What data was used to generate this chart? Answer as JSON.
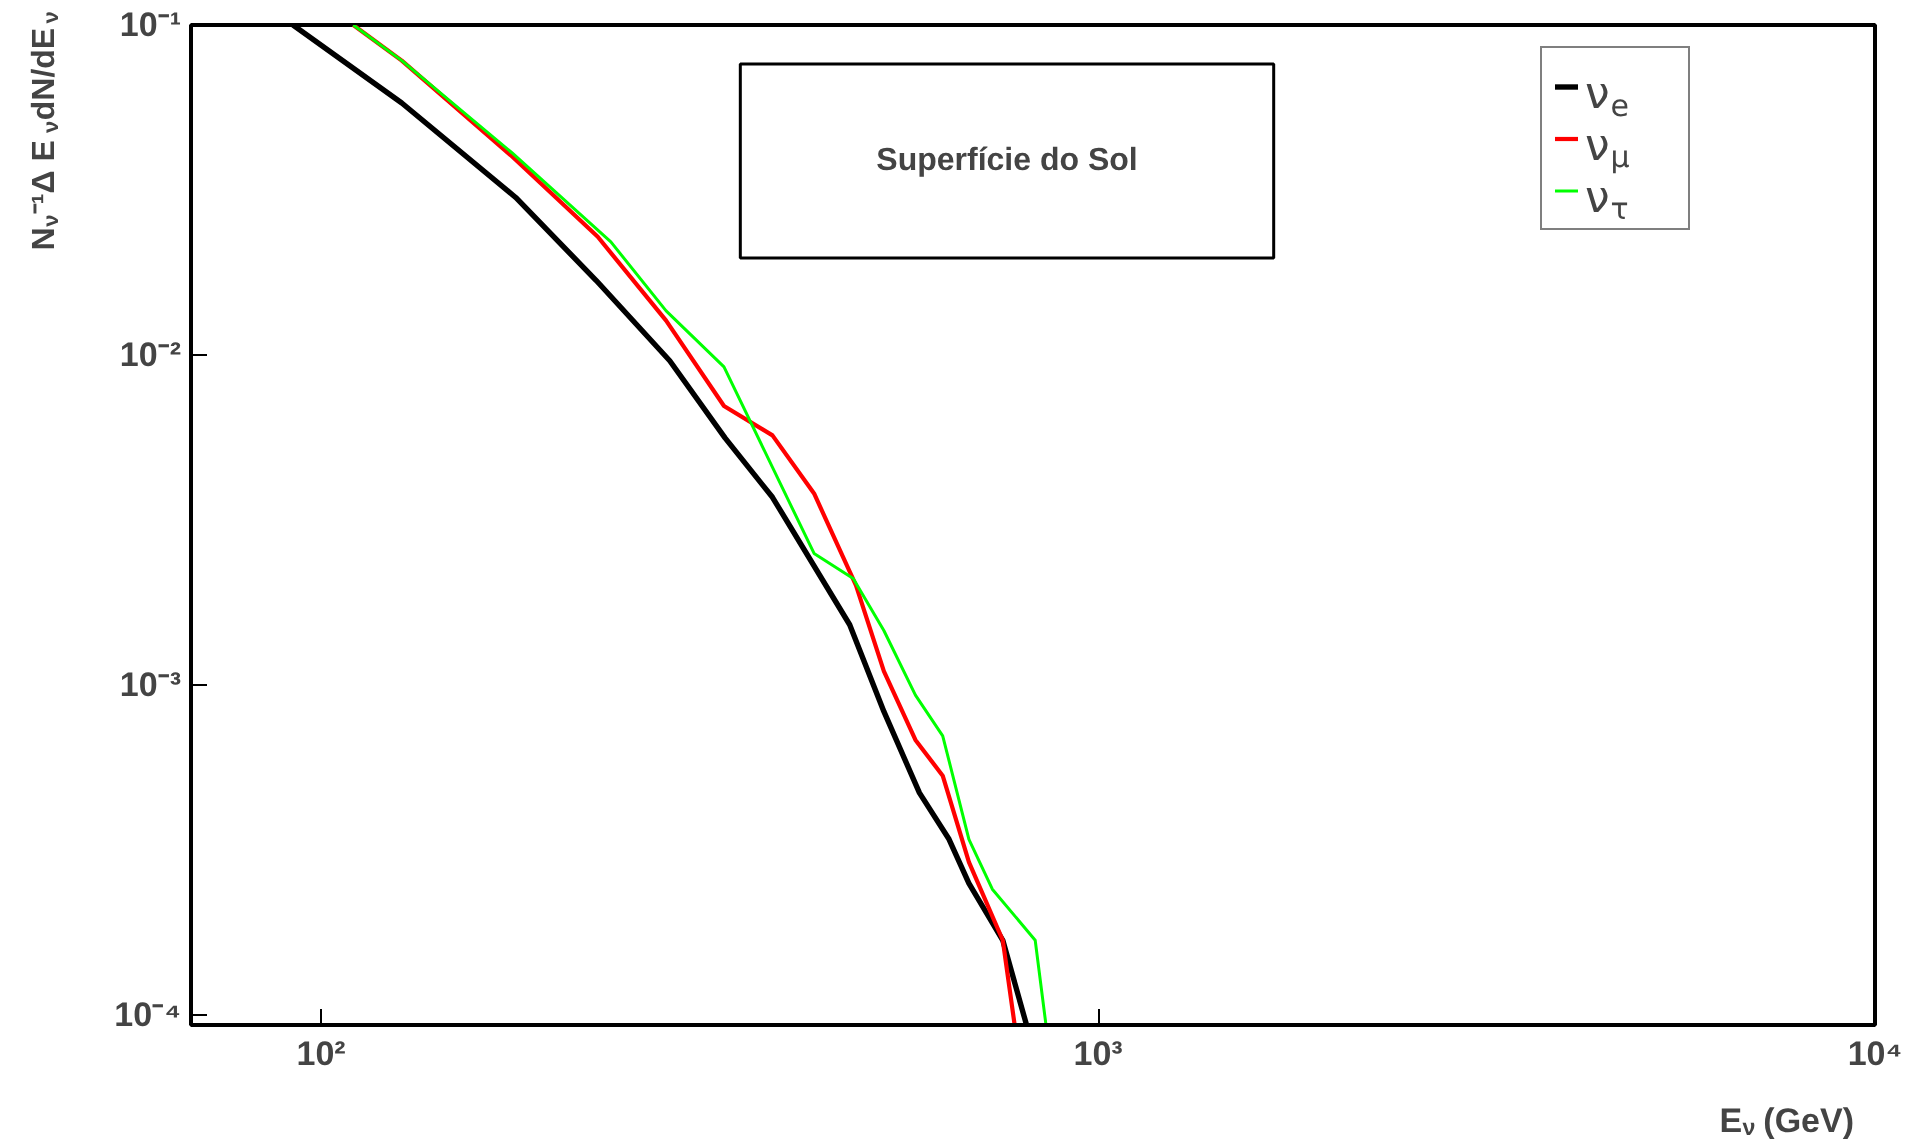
{
  "chart_data": {
    "type": "line",
    "ylabel": "N$_{ν}$⁻¹Δ E$_{ν}$dN/dE$_{ν}$",
    "xlabel": "E$_{ν}$ (GeV)",
    "annotations": [
      "Superfície do Sol"
    ],
    "log": "xy",
    "xlim": [
      68,
      10000
    ],
    "ylim": [
      9.3e-05,
      0.1
    ],
    "xticks": [
      {
        "value": 100,
        "label": "10²"
      },
      {
        "value": 1000,
        "label": "10³"
      },
      {
        "value": 10000,
        "label": "10⁴"
      }
    ],
    "yticks": [
      {
        "value": 0.0001,
        "label": "10⁻⁴"
      },
      {
        "value": 0.001,
        "label": "10⁻³"
      },
      {
        "value": 0.01,
        "label": "10⁻²"
      },
      {
        "value": 0.1,
        "label": "10⁻¹"
      }
    ],
    "legend": "top right",
    "grid": false,
    "line_style": "solid",
    "marker": "none",
    "series": [
      {
        "name": "ν$_{e}$",
        "color": "#000000",
        "x": [
          92,
          127,
          178,
          226,
          281,
          331,
          381,
          479,
          530,
          589,
          643,
          682,
          754,
          809
        ],
        "values": [
          0.1,
          0.058,
          0.03,
          0.0168,
          0.0096,
          0.0056,
          0.0037,
          0.00152,
          0.00083,
          0.00047,
          0.00034,
          0.00025,
          0.000168,
          9.3e-05
        ]
      },
      {
        "name": "ν$_{μ}$",
        "color": "#ff0000",
        "x": [
          110,
          127,
          176,
          227,
          278,
          330,
          381,
          431,
          488,
          530,
          582,
          631,
          682,
          754,
          781
        ],
        "values": [
          0.1,
          0.078,
          0.04,
          0.0228,
          0.0127,
          0.007,
          0.0057,
          0.0038,
          0.002,
          0.0011,
          0.00068,
          0.00053,
          0.00029,
          0.000168,
          9.3e-05
        ]
      },
      {
        "name": "ν$_{τ}$",
        "color": "#00ff00",
        "x": [
          110,
          127,
          176,
          236,
          278,
          330,
          431,
          484,
          530,
          582,
          631,
          682,
          731,
          830,
          857
        ],
        "values": [
          0.1,
          0.078,
          0.041,
          0.022,
          0.0136,
          0.0092,
          0.0025,
          0.0021,
          0.00146,
          0.00093,
          0.0007,
          0.00034,
          0.00024,
          0.000168,
          9.3e-05
        ]
      }
    ]
  }
}
